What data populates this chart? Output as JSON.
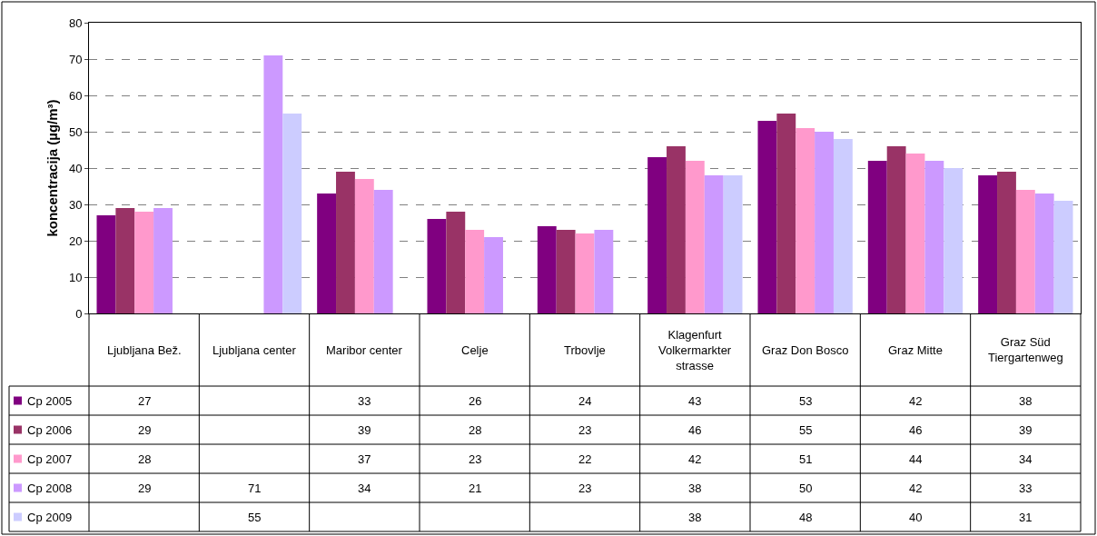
{
  "chart_data": {
    "type": "bar",
    "ylabel": "koncentracija (µg/m³)",
    "categories": [
      "Ljubljana Bež.",
      "Ljubljana center",
      "Maribor center",
      "Celje",
      "Trbovlje",
      "Klagenfurt Volkermarkter strasse",
      "Graz Don Bosco",
      "Graz Mitte",
      "Graz Süd Tiergartenweg"
    ],
    "series": [
      {
        "name": "Cp 2005",
        "color": "#800080",
        "values": [
          27,
          null,
          33,
          26,
          24,
          43,
          53,
          42,
          38
        ]
      },
      {
        "name": "Cp 2006",
        "color": "#993366",
        "values": [
          29,
          null,
          39,
          28,
          23,
          46,
          55,
          46,
          39
        ]
      },
      {
        "name": "Cp 2007",
        "color": "#ff99cc",
        "values": [
          28,
          null,
          37,
          23,
          22,
          42,
          51,
          44,
          34
        ]
      },
      {
        "name": "Cp 2008",
        "color": "#cc99ff",
        "values": [
          29,
          71,
          34,
          21,
          23,
          38,
          50,
          42,
          33
        ]
      },
      {
        "name": "Cp 2009",
        "color": "#ccccff",
        "values": [
          null,
          55,
          null,
          null,
          null,
          38,
          48,
          40,
          31
        ]
      }
    ],
    "ylim": [
      0,
      80
    ],
    "yticks": [
      0,
      10,
      20,
      30,
      40,
      50,
      60,
      70,
      80
    ],
    "grid": "y",
    "data_labels": true,
    "legend": "bottom"
  }
}
